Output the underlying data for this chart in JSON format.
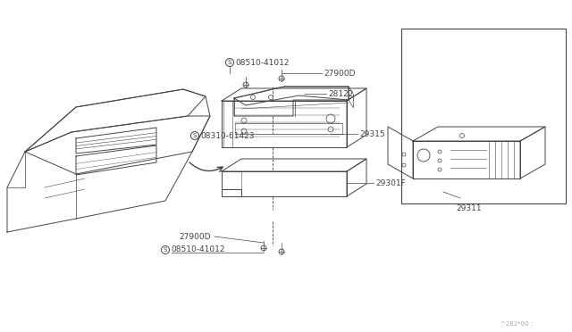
{
  "bg_color": "#ffffff",
  "line_color": "#444444",
  "text_color": "#444444",
  "fig_width": 6.4,
  "fig_height": 3.72,
  "dpi": 100,
  "labels": {
    "screw_top": "08510-41012",
    "screw_mid": "08310-61423",
    "screw_bot": "08510-41012",
    "part_27900D_top": "27900D",
    "part_28122": "28122",
    "part_29315": "29315",
    "part_29301F": "29301F",
    "part_27900D_bot": "27900D",
    "part_29311": "29311",
    "footnote": "^282*00 :"
  }
}
